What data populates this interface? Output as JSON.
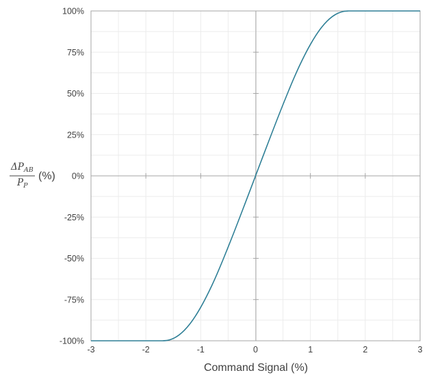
{
  "chart_data": {
    "type": "line",
    "xlabel": "Command Signal (%)",
    "ylabel": {
      "numerator": "ΔP",
      "numerator_subscript": "AB",
      "denominator": "P",
      "denominator_subscript": "P",
      "unit": "(%)"
    },
    "xlim": [
      -3,
      3
    ],
    "ylim": [
      -100,
      100
    ],
    "x_ticks": [
      -3,
      -2,
      -1,
      0,
      1,
      2,
      3
    ],
    "x_tick_labels": [
      "-3",
      "-2",
      "-1",
      "0",
      "1",
      "2",
      "3"
    ],
    "y_ticks": [
      -100,
      -75,
      -50,
      -25,
      0,
      25,
      50,
      75,
      100
    ],
    "y_tick_labels": [
      "-100%",
      "-75%",
      "-50%",
      "-25%",
      "0%",
      "25%",
      "50%",
      "75%",
      "100%"
    ],
    "grid": true,
    "legend": "none",
    "colors": {
      "line": "#2e7f96",
      "grid": "#ececec",
      "axis": "#a6a6a6",
      "text": "#404040"
    },
    "series": [
      {
        "x": [
          -3,
          -2.5,
          -2,
          -1.7,
          -1.6,
          -1.5,
          -1.4,
          -1.3,
          -1.2,
          -1.1,
          -1.0,
          -0.9,
          -0.8,
          -0.7,
          -0.6,
          -0.5,
          -0.4,
          -0.3,
          -0.2,
          -0.1,
          0,
          0.1,
          0.2,
          0.3,
          0.4,
          0.5,
          0.6,
          0.7,
          0.8,
          0.9,
          1.0,
          1.1,
          1.2,
          1.3,
          1.4,
          1.5,
          1.6,
          1.7,
          2,
          2.5,
          3
        ],
        "y": [
          -100,
          -100,
          -100,
          -100,
          -99.7,
          -98.6,
          -96.6,
          -93.7,
          -89.9,
          -85.2,
          -79.7,
          -73.5,
          -66.7,
          -59.3,
          -51.4,
          -43.2,
          -34.8,
          -26.2,
          -17.5,
          -8.8,
          0,
          8.8,
          17.5,
          26.2,
          34.8,
          43.2,
          51.4,
          59.3,
          66.7,
          73.5,
          79.7,
          85.2,
          89.9,
          93.7,
          96.6,
          98.6,
          99.7,
          100,
          100,
          100,
          100
        ]
      }
    ]
  }
}
